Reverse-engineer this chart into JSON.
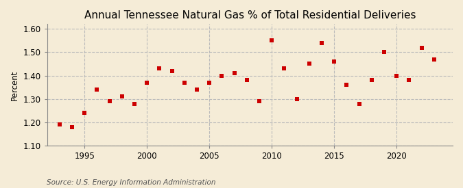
{
  "title": "Annual Tennessee Natural Gas % of Total Residential Deliveries",
  "ylabel": "Percent",
  "source": "Source: U.S. Energy Information Administration",
  "years": [
    1993,
    1994,
    1995,
    1996,
    1997,
    1998,
    1999,
    2000,
    2001,
    2002,
    2003,
    2004,
    2005,
    2006,
    2007,
    2008,
    2009,
    2010,
    2011,
    2012,
    2013,
    2014,
    2015,
    2016,
    2017,
    2018,
    2019,
    2020,
    2021,
    2022,
    2023
  ],
  "values": [
    1.19,
    1.18,
    1.24,
    1.34,
    1.29,
    1.31,
    1.28,
    1.37,
    1.43,
    1.42,
    1.37,
    1.34,
    1.37,
    1.4,
    1.41,
    1.38,
    1.29,
    1.55,
    1.43,
    1.3,
    1.45,
    1.54,
    1.46,
    1.36,
    1.28,
    1.38,
    1.5,
    1.4,
    1.38,
    1.52,
    1.47
  ],
  "marker_color": "#cc0000",
  "marker": "s",
  "marker_size": 5,
  "xlim": [
    1992.0,
    2024.5
  ],
  "ylim": [
    1.1,
    1.62
  ],
  "yticks": [
    1.1,
    1.2,
    1.3,
    1.4,
    1.5,
    1.6
  ],
  "xticks": [
    1995,
    2000,
    2005,
    2010,
    2015,
    2020
  ],
  "vline_years": [
    1995,
    2000,
    2005,
    2010,
    2015,
    2020
  ],
  "background_color": "#f5ecd7",
  "grid_color": "#bbbbbb",
  "title_fontsize": 11,
  "label_fontsize": 8.5,
  "tick_fontsize": 8.5,
  "source_fontsize": 7.5
}
